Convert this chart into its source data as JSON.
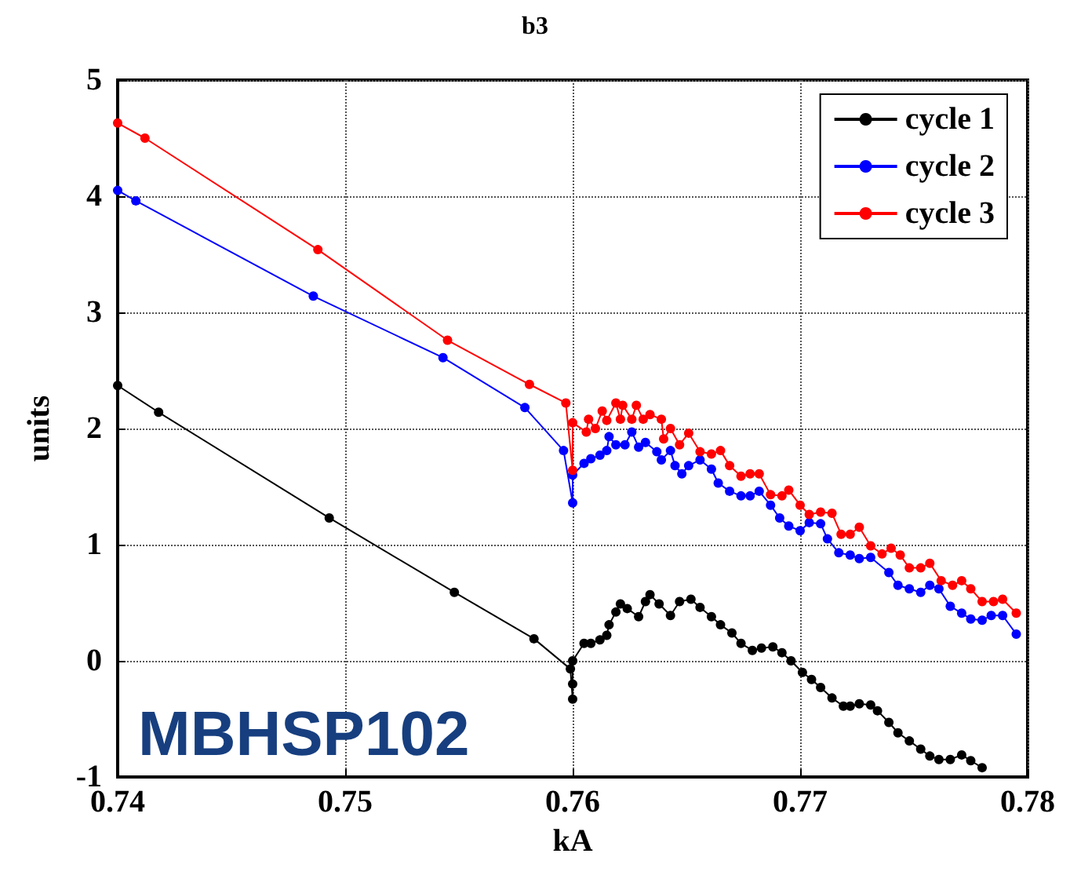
{
  "chart_data": {
    "type": "line",
    "title": "b3",
    "xlabel": "kA",
    "ylabel": "units",
    "annotations": [
      "MBHSP102"
    ],
    "xlim": [
      0.74,
      0.78
    ],
    "xticks": [
      0.74,
      0.75,
      0.76,
      0.77,
      0.78
    ],
    "ylim": [
      -1,
      5
    ],
    "yticks": [
      -1,
      0,
      1,
      2,
      3,
      4,
      5
    ],
    "grid": true,
    "legend": "top right",
    "marker": "circle",
    "line_style": "solid",
    "series": [
      {
        "name": "cycle 1",
        "color": "#000000",
        "x": [
          0.74,
          0.7418,
          0.7493,
          0.7548,
          0.7583,
          0.7599,
          0.76,
          0.76,
          0.76,
          0.7605,
          0.7608,
          0.7612,
          0.7615,
          0.7616,
          0.7619,
          0.7621,
          0.7624,
          0.7629,
          0.7632,
          0.7634,
          0.7638,
          0.7643,
          0.7647,
          0.7652,
          0.7656,
          0.7661,
          0.7665,
          0.767,
          0.7674,
          0.7679,
          0.7683,
          0.7688,
          0.7692,
          0.7696,
          0.7701,
          0.7705,
          0.7709,
          0.7714,
          0.7719,
          0.7722,
          0.7726,
          0.7731,
          0.7734,
          0.7739,
          0.7743,
          0.7748,
          0.7753,
          0.7757,
          0.7761,
          0.7766,
          0.7771,
          0.7775,
          0.778
        ],
        "values": [
          2.37,
          2.14,
          1.23,
          0.59,
          0.19,
          -0.07,
          -0.33,
          -0.2,
          0.0,
          0.15,
          0.15,
          0.18,
          0.22,
          0.31,
          0.42,
          0.49,
          0.45,
          0.38,
          0.51,
          0.57,
          0.49,
          0.39,
          0.51,
          0.53,
          0.46,
          0.38,
          0.31,
          0.24,
          0.15,
          0.09,
          0.11,
          0.12,
          0.07,
          0.0,
          -0.1,
          -0.16,
          -0.23,
          -0.32,
          -0.39,
          -0.39,
          -0.37,
          -0.38,
          -0.43,
          -0.53,
          -0.62,
          -0.69,
          -0.76,
          -0.82,
          -0.85,
          -0.85,
          -0.81,
          -0.86,
          -0.92
        ]
      },
      {
        "name": "cycle 2",
        "color": "#0000ff",
        "x": [
          0.74,
          0.7408,
          0.7486,
          0.7543,
          0.7579,
          0.7596,
          0.76,
          0.76,
          0.7605,
          0.7608,
          0.7612,
          0.7615,
          0.7616,
          0.7619,
          0.7623,
          0.7626,
          0.7629,
          0.7632,
          0.7637,
          0.7639,
          0.7643,
          0.7645,
          0.7648,
          0.7651,
          0.7656,
          0.7661,
          0.7664,
          0.7669,
          0.7674,
          0.7678,
          0.7682,
          0.7687,
          0.7691,
          0.7695,
          0.77,
          0.7704,
          0.7709,
          0.7712,
          0.7717,
          0.7722,
          0.7726,
          0.7731,
          0.7739,
          0.7743,
          0.7748,
          0.7753,
          0.7757,
          0.7761,
          0.7766,
          0.7771,
          0.7775,
          0.778,
          0.7784,
          0.7789,
          0.7795
        ],
        "values": [
          4.05,
          3.96,
          3.14,
          2.61,
          2.18,
          1.81,
          1.36,
          1.6,
          1.7,
          1.74,
          1.77,
          1.81,
          1.93,
          1.86,
          1.86,
          1.97,
          1.84,
          1.88,
          1.8,
          1.73,
          1.81,
          1.68,
          1.61,
          1.68,
          1.73,
          1.65,
          1.53,
          1.46,
          1.42,
          1.42,
          1.46,
          1.34,
          1.23,
          1.16,
          1.12,
          1.19,
          1.18,
          1.05,
          0.93,
          0.91,
          0.88,
          0.89,
          0.76,
          0.65,
          0.62,
          0.59,
          0.65,
          0.62,
          0.47,
          0.41,
          0.36,
          0.35,
          0.39,
          0.39,
          0.23
        ]
      },
      {
        "name": "cycle 3",
        "color": "#ff0000",
        "x": [
          0.74,
          0.7412,
          0.7488,
          0.7545,
          0.7581,
          0.7597,
          0.76,
          0.76,
          0.7606,
          0.7607,
          0.761,
          0.7613,
          0.7615,
          0.7619,
          0.7621,
          0.7622,
          0.7626,
          0.7628,
          0.7631,
          0.7634,
          0.7639,
          0.764,
          0.7643,
          0.7647,
          0.7651,
          0.7656,
          0.7661,
          0.7665,
          0.7669,
          0.7674,
          0.7678,
          0.7682,
          0.7687,
          0.7692,
          0.7695,
          0.77,
          0.7704,
          0.7709,
          0.7714,
          0.7718,
          0.7722,
          0.7726,
          0.7731,
          0.7736,
          0.774,
          0.7744,
          0.7748,
          0.7753,
          0.7757,
          0.7762,
          0.7767,
          0.7771,
          0.7775,
          0.778,
          0.7785,
          0.7789,
          0.7795
        ],
        "values": [
          4.63,
          4.5,
          3.54,
          2.76,
          2.38,
          2.22,
          1.64,
          2.05,
          1.97,
          2.08,
          2.0,
          2.15,
          2.07,
          2.22,
          2.08,
          2.2,
          2.08,
          2.2,
          2.08,
          2.12,
          2.08,
          1.91,
          2.0,
          1.86,
          1.96,
          1.8,
          1.78,
          1.81,
          1.68,
          1.59,
          1.61,
          1.61,
          1.43,
          1.42,
          1.47,
          1.34,
          1.26,
          1.28,
          1.27,
          1.09,
          1.09,
          1.15,
          0.99,
          0.92,
          0.97,
          0.91,
          0.8,
          0.8,
          0.84,
          0.69,
          0.65,
          0.69,
          0.62,
          0.51,
          0.51,
          0.53,
          0.41
        ]
      }
    ]
  }
}
